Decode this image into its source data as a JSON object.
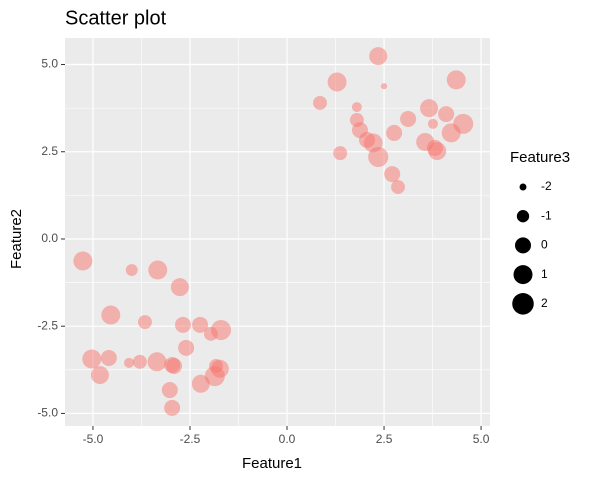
{
  "chart_data": {
    "type": "scatter",
    "title": "Scatter plot",
    "x_label": "Feature1",
    "y_label": "Feature2",
    "size_label": "Feature3",
    "color": "#F8766D",
    "grid": true,
    "x": [
      2.35,
      1.29,
      4.36,
      2.5,
      0.85,
      1.8,
      3.66,
      4.1,
      1.8,
      3.12,
      3.76,
      4.54,
      1.88,
      2.76,
      4.23,
      2.06,
      2.22,
      3.56,
      3.81,
      1.37,
      3.87,
      2.35,
      2.71,
      2.86,
      -5.26,
      -4.0,
      -3.33,
      -2.76,
      -4.54,
      -3.66,
      -2.68,
      -2.24,
      -1.7,
      -1.96,
      -2.6,
      -5.03,
      -4.59,
      -4.07,
      -3.79,
      -3.35,
      -2.96,
      -2.91,
      -1.83,
      -1.73,
      -4.82,
      -1.86,
      -2.22,
      -3.02,
      -2.96
    ],
    "values": [
      5.24,
      4.5,
      4.56,
      4.38,
      3.9,
      3.78,
      3.75,
      3.58,
      3.41,
      3.44,
      3.3,
      3.3,
      3.12,
      3.04,
      3.04,
      2.84,
      2.75,
      2.78,
      2.61,
      2.46,
      2.52,
      2.35,
      1.86,
      1.49,
      -0.63,
      -0.89,
      -0.89,
      -1.38,
      -2.18,
      -2.38,
      -2.46,
      -2.46,
      -2.61,
      -2.72,
      -3.12,
      -3.44,
      -3.41,
      -3.55,
      -3.52,
      -3.52,
      -3.61,
      -3.64,
      -3.64,
      -3.72,
      -3.9,
      -3.93,
      -4.15,
      -4.33,
      -4.84
    ],
    "sizes": [
      0.65,
      1.0,
      1.0,
      -2.1,
      -0.6,
      -1.5,
      0.65,
      0,
      -0.6,
      0,
      -1.5,
      1.4,
      0,
      0,
      1.0,
      0,
      1.0,
      0.65,
      0,
      -0.6,
      0.65,
      1.4,
      0,
      -0.6,
      1.0,
      -1.1,
      1.0,
      0.65,
      1.0,
      -0.6,
      0,
      0,
      1.4,
      -0.6,
      0,
      1.0,
      0,
      -1.5,
      -0.6,
      1.0,
      0,
      0,
      -0.6,
      0.65,
      0.65,
      1.4,
      0.65,
      0,
      0
    ],
    "size_legend": [
      -2,
      -1,
      0,
      1,
      2
    ],
    "xlim": [
      -5.72,
      5.23
    ],
    "ylim": [
      -5.36,
      5.76
    ],
    "xticks": [
      {
        "value": -5,
        "label": "-5.0"
      },
      {
        "value": -2.5,
        "label": "-2.5"
      },
      {
        "value": 0,
        "label": "0.0"
      },
      {
        "value": 2.5,
        "label": "2.5"
      },
      {
        "value": 5,
        "label": "5.0"
      }
    ],
    "yticks": [
      {
        "value": -5,
        "label": "-5.0"
      },
      {
        "value": -2.5,
        "label": "-2.5"
      },
      {
        "value": 0,
        "label": "0.0"
      },
      {
        "value": 2.5,
        "label": "2.5"
      },
      {
        "value": 5,
        "label": "5.0"
      }
    ]
  }
}
